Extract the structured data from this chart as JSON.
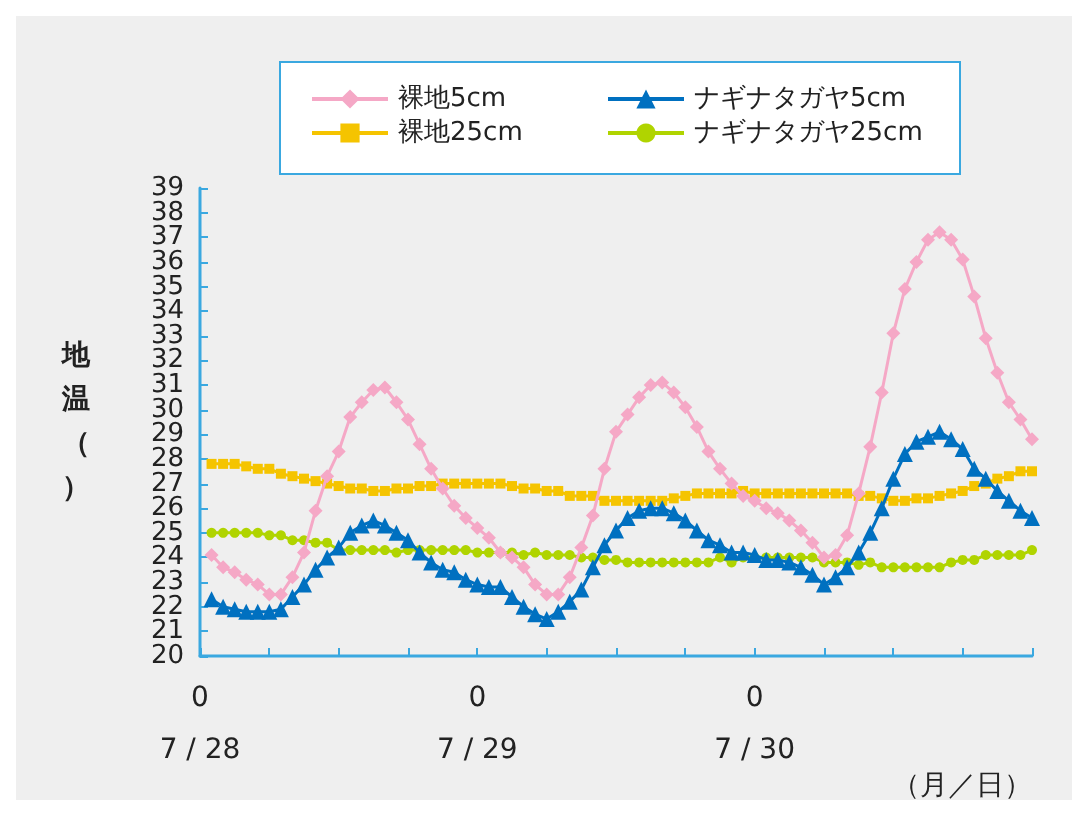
{
  "chart_data": {
    "type": "line",
    "ylabel": "地温（）",
    "xlabel": "（月／日）",
    "legend": "top",
    "grid": false,
    "x": [
      "--07-28T01:00",
      "--07-28T02:00",
      "--07-28T03:00",
      "--07-28T04:00",
      "--07-28T05:00",
      "--07-28T06:00",
      "--07-28T07:00",
      "--07-28T08:00",
      "--07-28T09:00",
      "--07-28T10:00",
      "--07-28T11:00",
      "--07-28T12:00",
      "--07-28T13:00",
      "--07-28T14:00",
      "--07-28T15:00",
      "--07-28T16:00",
      "--07-28T17:00",
      "--07-28T18:00",
      "--07-28T19:00",
      "--07-28T20:00",
      "--07-28T21:00",
      "--07-28T22:00",
      "--07-28T23:00",
      "--07-29T00:00",
      "--07-29T01:00",
      "--07-29T02:00",
      "--07-29T03:00",
      "--07-29T04:00",
      "--07-29T05:00",
      "--07-29T06:00",
      "--07-29T07:00",
      "--07-29T08:00",
      "--07-29T09:00",
      "--07-29T10:00",
      "--07-29T11:00",
      "--07-29T12:00",
      "--07-29T13:00",
      "--07-29T14:00",
      "--07-29T15:00",
      "--07-29T16:00",
      "--07-29T17:00",
      "--07-29T18:00",
      "--07-29T19:00",
      "--07-29T20:00",
      "--07-29T21:00",
      "--07-29T22:00",
      "--07-29T23:00",
      "--07-30T00:00",
      "--07-30T01:00",
      "--07-30T02:00",
      "--07-30T03:00",
      "--07-30T04:00",
      "--07-30T05:00",
      "--07-30T06:00",
      "--07-30T07:00",
      "--07-30T08:00",
      "--07-30T09:00",
      "--07-30T10:00",
      "--07-30T11:00",
      "--07-30T12:00",
      "--07-30T13:00",
      "--07-30T14:00",
      "--07-30T15:00",
      "--07-30T16:00",
      "--07-30T17:00",
      "--07-30T18:00",
      "--07-30T19:00",
      "--07-30T20:00",
      "--07-30T21:00",
      "--07-30T22:00",
      "--07-30T23:00",
      "--07-31T00:00"
    ],
    "xlim": [
      "--07-28T00:00",
      "--07-31T00:00"
    ],
    "xticks": [
      {
        "value": "--07-28T00:00",
        "label": "0\n7 / 28"
      },
      {
        "value": "--07-28T06:00",
        "label": null
      },
      {
        "value": "--07-28T12:00",
        "label": null
      },
      {
        "value": "--07-28T18:00",
        "label": null
      },
      {
        "value": "--07-29T00:00",
        "label": "0\n7 / 29"
      },
      {
        "value": "--07-29T06:00",
        "label": null
      },
      {
        "value": "--07-29T12:00",
        "label": null
      },
      {
        "value": "--07-29T18:00",
        "label": null
      },
      {
        "value": "--07-30T00:00",
        "label": "0\n7 / 30"
      },
      {
        "value": "--07-30T06:00",
        "label": null
      },
      {
        "value": "--07-30T12:00",
        "label": null
      },
      {
        "value": "--07-30T18:00",
        "label": null
      },
      {
        "value": "--07-31T00:00",
        "label": null
      }
    ],
    "ylim": [
      20,
      39
    ],
    "yticks": [
      20,
      21,
      22,
      23,
      24,
      25,
      26,
      27,
      28,
      29,
      30,
      31,
      32,
      33,
      34,
      35,
      36,
      37,
      38,
      39
    ],
    "series": [
      {
        "name": "裸地5cm",
        "color": "#f5a8c6",
        "marker": "diamond",
        "values": [
          24.1,
          23.6,
          23.4,
          23.1,
          22.9,
          22.5,
          22.5,
          23.2,
          24.2,
          25.9,
          27.3,
          28.3,
          29.7,
          30.3,
          30.8,
          30.9,
          30.3,
          29.6,
          28.6,
          27.6,
          26.8,
          26.1,
          25.6,
          25.2,
          24.8,
          24.2,
          24.0,
          23.6,
          22.9,
          22.5,
          22.5,
          23.2,
          24.4,
          25.7,
          27.6,
          29.1,
          29.8,
          30.5,
          31.0,
          31.1,
          30.7,
          30.1,
          29.3,
          28.3,
          27.6,
          27.0,
          26.5,
          26.3,
          26.0,
          25.8,
          25.5,
          25.1,
          24.6,
          24.0,
          24.1,
          24.9,
          26.6,
          28.5,
          30.7,
          33.1,
          34.9,
          36.0,
          36.9,
          37.2,
          36.9,
          36.1,
          34.6,
          32.9,
          31.5,
          30.3,
          29.6,
          28.8
        ]
      },
      {
        "name": "裸地25cm",
        "color": "#f5c400",
        "marker": "square",
        "values": [
          27.8,
          27.8,
          27.8,
          27.7,
          27.6,
          27.6,
          27.4,
          27.3,
          27.2,
          27.1,
          27.0,
          26.9,
          26.8,
          26.8,
          26.7,
          26.7,
          26.8,
          26.8,
          26.9,
          26.9,
          27.0,
          27.0,
          27.0,
          27.0,
          27.0,
          27.0,
          26.9,
          26.8,
          26.8,
          26.7,
          26.7,
          26.5,
          26.5,
          26.5,
          26.3,
          26.3,
          26.3,
          26.3,
          26.3,
          26.3,
          26.4,
          26.5,
          26.6,
          26.6,
          26.6,
          26.6,
          26.7,
          26.6,
          26.6,
          26.6,
          26.6,
          26.6,
          26.6,
          26.6,
          26.6,
          26.6,
          26.5,
          26.5,
          26.4,
          26.3,
          26.3,
          26.4,
          26.4,
          26.5,
          26.6,
          26.7,
          26.9,
          27.0,
          27.2,
          27.3,
          27.5,
          27.5
        ]
      },
      {
        "name": "ナギナタガヤ5cm",
        "color": "#0070c0",
        "marker": "triangle",
        "values": [
          22.3,
          22.0,
          21.9,
          21.8,
          21.8,
          21.8,
          21.9,
          22.4,
          22.9,
          23.5,
          24.0,
          24.4,
          25.0,
          25.3,
          25.5,
          25.3,
          25.0,
          24.7,
          24.2,
          23.8,
          23.5,
          23.4,
          23.1,
          22.9,
          22.8,
          22.8,
          22.4,
          22.0,
          21.7,
          21.5,
          21.8,
          22.2,
          22.7,
          23.6,
          24.5,
          25.1,
          25.6,
          25.9,
          26.0,
          26.0,
          25.8,
          25.5,
          25.1,
          24.7,
          24.5,
          24.2,
          24.2,
          24.1,
          23.9,
          23.9,
          23.8,
          23.6,
          23.3,
          22.9,
          23.2,
          23.6,
          24.2,
          25.0,
          26.0,
          27.2,
          28.2,
          28.7,
          28.9,
          29.1,
          28.8,
          28.4,
          27.6,
          27.2,
          26.7,
          26.3,
          25.9,
          25.6
        ]
      },
      {
        "name": "ナギナタガヤ25cm",
        "color": "#b0d400",
        "marker": "circle",
        "values": [
          25.0,
          25.0,
          25.0,
          25.0,
          25.0,
          24.9,
          24.9,
          24.7,
          24.7,
          24.6,
          24.6,
          24.3,
          24.3,
          24.3,
          24.3,
          24.3,
          24.2,
          24.3,
          24.3,
          24.3,
          24.3,
          24.3,
          24.3,
          24.2,
          24.2,
          24.2,
          24.2,
          24.1,
          24.2,
          24.1,
          24.1,
          24.1,
          24.0,
          24.0,
          23.9,
          23.9,
          23.8,
          23.8,
          23.8,
          23.8,
          23.8,
          23.8,
          23.8,
          23.8,
          24.0,
          23.8,
          24.0,
          24.0,
          24.0,
          24.0,
          24.0,
          24.0,
          24.0,
          23.8,
          23.8,
          23.8,
          23.7,
          23.8,
          23.6,
          23.6,
          23.6,
          23.6,
          23.6,
          23.6,
          23.8,
          23.9,
          23.9,
          24.1,
          24.1,
          24.1,
          24.1,
          24.3
        ]
      }
    ]
  }
}
